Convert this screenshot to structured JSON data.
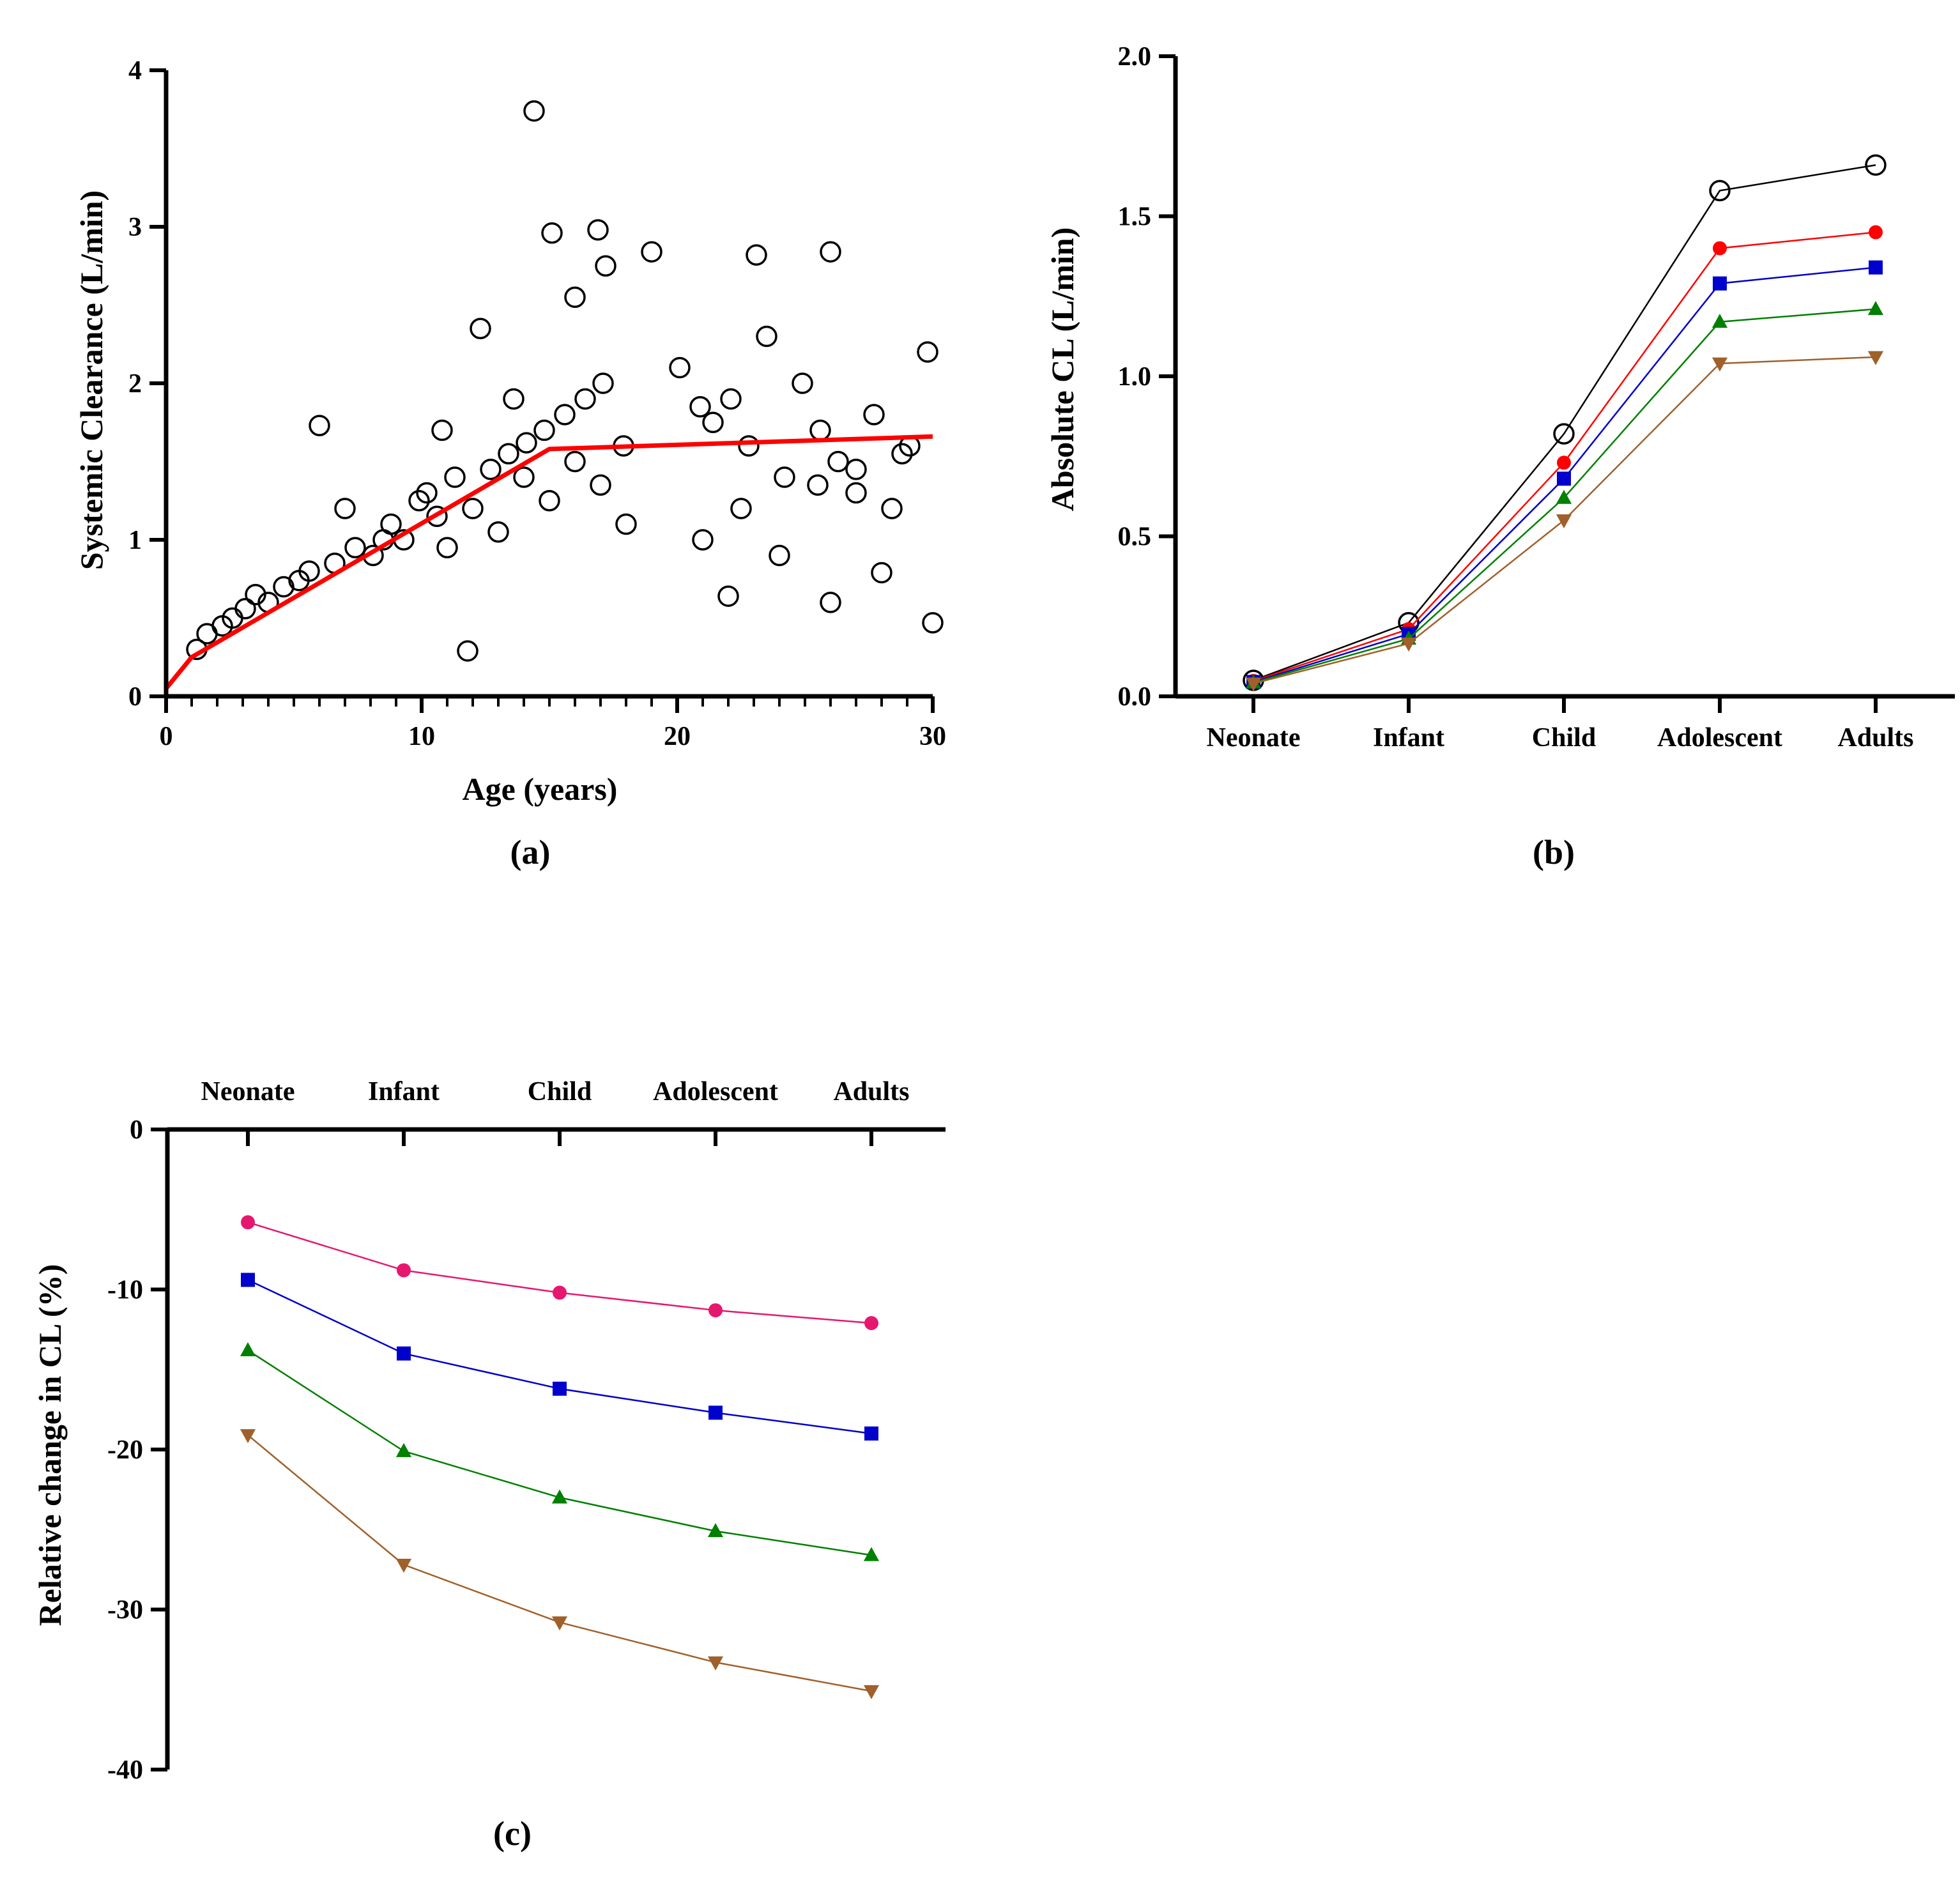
{
  "chart_data": [
    {
      "id": "a",
      "type": "scatter",
      "panel_label": "(a)",
      "xlabel": "Age (years)",
      "ylabel": "Systemic Clearance (L/min)",
      "xlim": [
        0,
        30
      ],
      "ylim": [
        0,
        4
      ],
      "xticks": [
        0,
        10,
        20,
        30
      ],
      "yticks": [
        0,
        1,
        2,
        3,
        4
      ],
      "grid": false,
      "marker": "open-circle",
      "notes": "Scatter of observed clearance values (open black circles) with red piecewise model line.",
      "series": [
        {
          "kind": "line",
          "color": "#ff0000",
          "x": [
            0,
            1,
            15,
            30
          ],
          "y": [
            0.05,
            0.25,
            1.58,
            1.66
          ]
        },
        {
          "kind": "scatter",
          "color": "#000000",
          "x": [
            14.4,
            15.1,
            16.9,
            19.0,
            26.0,
            23.1,
            17.2,
            16.0,
            12.3,
            6.0,
            30.0,
            28.0,
            11.8,
            26.0,
            22.0,
            3.1,
            5.2,
            7.4,
            8.8,
            9.9,
            10.6,
            11.3,
            12.7,
            13.4,
            14.1,
            14.8,
            15.6,
            16.4,
            17.1,
            17.9,
            20.1,
            20.9,
            21.4,
            22.1,
            22.8,
            23.5,
            24.2,
            24.9,
            25.6,
            26.3,
            27.0,
            27.7,
            28.4,
            29.1,
            29.8,
            2.2,
            4.0,
            6.6,
            8.1,
            9.3,
            10.2,
            11.0,
            12.0,
            13.0,
            14.0,
            15.0,
            16.0,
            17.0,
            18.0,
            21.0,
            22.5,
            24.0,
            25.5,
            27.0,
            28.8,
            1.2,
            1.6,
            2.6,
            3.5,
            4.6,
            5.6,
            7.0,
            8.5,
            10.8,
            13.6
          ],
          "y": [
            3.74,
            2.96,
            2.98,
            2.84,
            2.84,
            2.82,
            2.75,
            2.55,
            2.35,
            1.73,
            0.47,
            0.79,
            0.29,
            0.6,
            0.64,
            0.56,
            0.74,
            0.95,
            1.1,
            1.25,
            1.15,
            1.4,
            1.45,
            1.55,
            1.62,
            1.7,
            1.8,
            1.9,
            2.0,
            1.6,
            2.1,
            1.85,
            1.75,
            1.9,
            1.6,
            2.3,
            1.4,
            2.0,
            1.7,
            1.5,
            1.3,
            1.8,
            1.2,
            1.6,
            2.2,
            0.45,
            0.6,
            0.85,
            0.9,
            1.0,
            1.3,
            0.95,
            1.2,
            1.05,
            1.4,
            1.25,
            1.5,
            1.35,
            1.1,
            1.0,
            1.2,
            0.9,
            1.35,
            1.45,
            1.55,
            0.3,
            0.4,
            0.5,
            0.65,
            0.7,
            0.8,
            1.2,
            1.0,
            1.7,
            1.9
          ]
        }
      ]
    },
    {
      "id": "b",
      "type": "line",
      "panel_label": "(b)",
      "xlabel": "",
      "ylabel": "Absolute CL (L/min)",
      "categories": [
        "Neonate",
        "Infant",
        "Child",
        "Adolescent",
        "Adults"
      ],
      "ylim": [
        0,
        2.0
      ],
      "yticks": [
        "0.0",
        "0.5",
        "1.0",
        "1.5",
        "2.0"
      ],
      "grid": false,
      "series": [
        {
          "marker": "open-circle",
          "color": "#000000",
          "values": [
            0.05,
            0.23,
            0.82,
            1.58,
            1.66
          ]
        },
        {
          "marker": "circle",
          "color": "#ff0000",
          "values": [
            0.048,
            0.21,
            0.73,
            1.4,
            1.45
          ]
        },
        {
          "marker": "square",
          "color": "#0000cc",
          "values": [
            0.045,
            0.195,
            0.68,
            1.29,
            1.34
          ]
        },
        {
          "marker": "triangle-up",
          "color": "#008000",
          "values": [
            0.043,
            0.18,
            0.62,
            1.17,
            1.21
          ]
        },
        {
          "marker": "triangle-down",
          "color": "#a0602a",
          "values": [
            0.04,
            0.165,
            0.55,
            1.04,
            1.06
          ]
        }
      ]
    },
    {
      "id": "c",
      "type": "line",
      "panel_label": "(c)",
      "xlabel": "",
      "ylabel": "Relative change in CL (%)",
      "categories": [
        "Neonate",
        "Infant",
        "Child",
        "Adolescent",
        "Adults"
      ],
      "x_axis_position": "top",
      "ylim": [
        -40,
        0
      ],
      "yticks": [
        0,
        -10,
        -20,
        -30,
        -40
      ],
      "grid": false,
      "series": [
        {
          "marker": "circle",
          "color": "#e6176f",
          "values": [
            -5.8,
            -8.8,
            -10.2,
            -11.3,
            -12.1
          ]
        },
        {
          "marker": "square",
          "color": "#0000cc",
          "values": [
            -9.4,
            -14.0,
            -16.2,
            -17.7,
            -19.0
          ]
        },
        {
          "marker": "triangle-up",
          "color": "#008000",
          "values": [
            -13.8,
            -20.1,
            -23.0,
            -25.1,
            -26.6
          ]
        },
        {
          "marker": "triangle-down",
          "color": "#a0602a",
          "values": [
            -19.1,
            -27.2,
            -30.8,
            -33.3,
            -35.1
          ]
        }
      ]
    }
  ]
}
